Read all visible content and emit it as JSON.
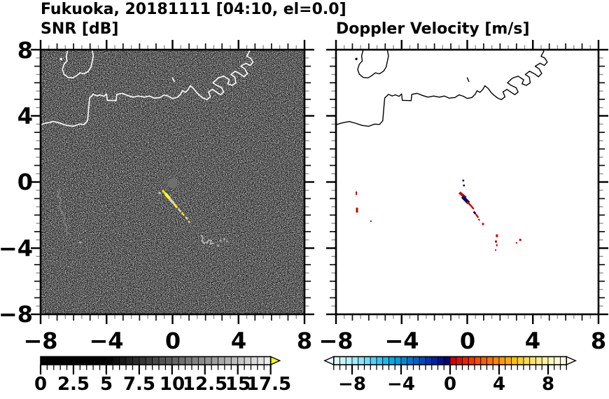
{
  "title": "Fukuoka, 20181111 [04:10, el=0.0]",
  "panels": {
    "snr": {
      "subtitle": "SNR [dB]",
      "ytick_labels": [
        "8",
        "4",
        "0",
        "−4",
        "−8"
      ],
      "xtick_labels": [
        "−8",
        "−4",
        "0",
        "4",
        "8"
      ],
      "colorbar_labels": [
        "0",
        "2.5",
        "5",
        "7.5",
        "10",
        "12.5",
        "15",
        "17.5"
      ]
    },
    "vel": {
      "subtitle": "Doppler Velocity [m/s]",
      "xtick_labels": [
        "−8",
        "−4",
        "0",
        "4",
        "8"
      ],
      "colorbar_labels": [
        "−8",
        "−4",
        "0",
        "4",
        "8"
      ]
    }
  },
  "map": {
    "coastline": [
      [
        [
          -8.05,
          3.45
        ],
        [
          -7.6,
          3.58
        ],
        [
          -7.2,
          3.66
        ],
        [
          -6.8,
          3.55
        ],
        [
          -6.4,
          3.42
        ],
        [
          -6.0,
          3.37
        ],
        [
          -5.65,
          3.5
        ],
        [
          -5.35,
          3.48
        ],
        [
          -5.15,
          3.7
        ],
        [
          -5.1,
          4.3
        ],
        [
          -5.03,
          5.08
        ],
        [
          -4.8,
          5.3
        ],
        [
          -4.58,
          5.2
        ],
        [
          -4.38,
          5.27
        ],
        [
          -4.15,
          5.18
        ],
        [
          -4.0,
          5.33
        ],
        [
          -3.96,
          4.94
        ],
        [
          -3.42,
          4.92
        ],
        [
          -3.38,
          5.3
        ],
        [
          -3.05,
          5.36
        ],
        [
          -2.75,
          5.24
        ],
        [
          -2.4,
          5.13
        ],
        [
          -2.05,
          5.2
        ],
        [
          -1.7,
          5.13
        ],
        [
          -1.4,
          5.2
        ],
        [
          -1.1,
          5.07
        ],
        [
          -0.75,
          5.11
        ],
        [
          -0.5,
          5.27
        ],
        [
          -0.25,
          5.19
        ],
        [
          0.0,
          5.05
        ],
        [
          0.28,
          5.11
        ],
        [
          0.48,
          5.3
        ],
        [
          0.6,
          5.52
        ],
        [
          0.78,
          5.42
        ],
        [
          0.95,
          5.6
        ],
        [
          1.08,
          5.82
        ],
        [
          1.28,
          5.65
        ],
        [
          1.45,
          5.42
        ],
        [
          1.62,
          5.25
        ],
        [
          1.85,
          5.08
        ],
        [
          2.08,
          4.98
        ],
        [
          2.3,
          5.15
        ],
        [
          2.18,
          5.45
        ],
        [
          2.42,
          5.6
        ],
        [
          2.68,
          5.42
        ],
        [
          2.9,
          5.28
        ],
        [
          3.1,
          5.44
        ],
        [
          2.98,
          5.7
        ],
        [
          2.68,
          5.84
        ],
        [
          2.45,
          6.0
        ],
        [
          2.76,
          6.28
        ],
        [
          3.1,
          6.4
        ],
        [
          3.44,
          6.18
        ],
        [
          3.34,
          5.94
        ],
        [
          3.6,
          5.84
        ],
        [
          3.84,
          6.0
        ],
        [
          3.78,
          6.34
        ],
        [
          3.54,
          6.5
        ],
        [
          3.8,
          6.7
        ],
        [
          4.1,
          6.54
        ],
        [
          4.34,
          6.36
        ],
        [
          4.54,
          6.56
        ],
        [
          4.38,
          6.84
        ],
        [
          4.14,
          7.0
        ],
        [
          4.44,
          7.18
        ],
        [
          4.7,
          7.05
        ],
        [
          4.88,
          7.25
        ],
        [
          4.72,
          7.5
        ],
        [
          4.5,
          7.6
        ],
        [
          4.66,
          7.9
        ],
        [
          4.6,
          8.15
        ]
      ],
      [
        [
          -6.3,
          8.15
        ],
        [
          -6.44,
          7.62
        ],
        [
          -6.4,
          7.32
        ],
        [
          -6.58,
          7.12
        ],
        [
          -6.68,
          6.8
        ],
        [
          -6.58,
          6.52
        ],
        [
          -6.34,
          6.32
        ],
        [
          -6.04,
          6.3
        ],
        [
          -5.84,
          6.42
        ],
        [
          -5.6,
          6.6
        ],
        [
          -5.36,
          6.54
        ],
        [
          -5.1,
          6.7
        ],
        [
          -4.94,
          6.96
        ],
        [
          -4.87,
          7.3
        ],
        [
          -4.8,
          7.62
        ],
        [
          -4.9,
          8.15
        ]
      ],
      [
        [
          0.0,
          6.3
        ],
        [
          0.1,
          6.08
        ]
      ]
    ],
    "islet_dot": [
      -6.76,
      7.44
    ]
  },
  "chart_data": [
    {
      "type": "heatmap",
      "title": "SNR [dB]",
      "xlim": [
        -8,
        8
      ],
      "ylim": [
        -8,
        8
      ],
      "xticks": [
        -8,
        -4,
        0,
        4,
        8
      ],
      "yticks": [
        -8,
        -4,
        0,
        4,
        8
      ],
      "minor_tick_step": 0.5,
      "background_color": "#000000",
      "coastline_color": "#ffffff",
      "colorbar": {
        "orientation": "horizontal",
        "min": 0,
        "max": 17.5,
        "segment_step": 0.5,
        "tick_values": [
          0,
          2.5,
          5,
          7.5,
          10,
          12.5,
          15,
          17.5
        ],
        "palette": "black-to-white",
        "over_arrow_color": "#ffff00"
      },
      "features": {
        "radar_site": {
          "x": 0.0,
          "y": -0.08,
          "radius": 0.31,
          "color": "#6f6f6f"
        },
        "plume_segments": [
          {
            "c": [
              -0.78,
              -0.66
            ],
            "l": 0.18,
            "w": 0.09,
            "a": 52,
            "col": "#c8c8c8"
          },
          {
            "c": [
              -0.52,
              -0.6
            ],
            "l": 0.3,
            "w": 0.13,
            "a": 50,
            "col": "#eaea00"
          },
          {
            "c": [
              -0.3,
              -0.86
            ],
            "l": 0.44,
            "w": 0.18,
            "a": 48,
            "col": "#ffff22"
          },
          {
            "c": [
              -0.05,
              -1.16
            ],
            "l": 0.4,
            "w": 0.15,
            "a": 48,
            "col": "#d8d8cc"
          },
          {
            "c": [
              0.18,
              -1.43
            ],
            "l": 0.34,
            "w": 0.13,
            "a": 50,
            "col": "#ffff00"
          },
          {
            "c": [
              0.42,
              -1.7
            ],
            "l": 0.26,
            "w": 0.11,
            "a": 50,
            "col": "#cfcfc6"
          },
          {
            "c": [
              0.63,
              -1.94
            ],
            "l": 0.26,
            "w": 0.1,
            "a": 52,
            "col": "#f0f000"
          },
          {
            "c": [
              0.85,
              -2.18
            ],
            "l": 0.22,
            "w": 0.09,
            "a": 52,
            "col": "#e0e0d4"
          },
          {
            "c": [
              1.0,
              -2.4
            ],
            "l": 0.16,
            "w": 0.08,
            "a": 52,
            "col": "#ffff44"
          }
        ],
        "ground_clutter_curl": [
          [
            1.7,
            -3.2
          ],
          [
            1.85,
            -3.35
          ],
          [
            1.78,
            -3.55
          ],
          [
            1.9,
            -3.7
          ],
          [
            2.1,
            -3.65
          ],
          [
            2.2,
            -3.5
          ],
          [
            2.35,
            -3.55
          ],
          [
            2.3,
            -3.75
          ],
          [
            2.5,
            -3.7
          ]
        ],
        "clutter_dots": [
          [
            2.9,
            -3.55
          ],
          [
            3.15,
            -3.45
          ],
          [
            2.75,
            -3.85
          ],
          [
            3.3,
            -3.6
          ],
          [
            -5.6,
            -3.65
          ]
        ],
        "weak_echo_chain_west": [
          [
            -6.85,
            -0.5
          ],
          [
            -6.95,
            -0.85
          ],
          [
            -6.75,
            -1.1
          ],
          [
            -6.88,
            -1.5
          ],
          [
            -6.7,
            -1.85
          ],
          [
            -6.55,
            -2.1
          ],
          [
            -6.6,
            -2.45
          ],
          [
            -6.4,
            -2.7
          ],
          [
            -6.45,
            -3.0
          ],
          [
            -6.25,
            -3.15
          ]
        ],
        "weak_echo_chain_mid": [
          [
            -4.5,
            -0.55
          ],
          [
            -4.3,
            -0.9
          ],
          [
            -4.05,
            -1.2
          ],
          [
            -3.6,
            -1.75
          ],
          [
            -3.4,
            -2.05
          ],
          [
            -3.75,
            -2.7
          ],
          [
            -3.82,
            -3.3
          ],
          [
            -3.3,
            -3.5
          ],
          [
            -2.85,
            -3.72
          ],
          [
            -2.4,
            -3.9
          ],
          [
            -2.0,
            -4.0
          ]
        ]
      }
    },
    {
      "type": "heatmap",
      "title": "Doppler Velocity [m/s]",
      "xlim": [
        -8,
        8
      ],
      "ylim": [
        -8,
        8
      ],
      "xticks": [
        -8,
        -4,
        0,
        4,
        8
      ],
      "yticks": [
        -8,
        -4,
        0,
        4,
        8
      ],
      "minor_tick_step": 0.5,
      "background_color": "#ffffff",
      "coastline_color": "#000000",
      "colorbar": {
        "orientation": "horizontal",
        "min": -9.5,
        "max": 9.5,
        "segment_step": 0.5,
        "tick_values": [
          -8,
          -4,
          0,
          4,
          8
        ],
        "under_arrow_color": "#eafcff",
        "over_arrow_color": "#ffffea",
        "colors": [
          "#dcfaff",
          "#c8f5ff",
          "#b4f0ff",
          "#a0ebff",
          "#8ce5ff",
          "#6edcff",
          "#50d2fe",
          "#32c8f8",
          "#14bcf0",
          "#00ace8",
          "#009ce0",
          "#008ad8",
          "#0076d0",
          "#0060c8",
          "#004ac0",
          "#0034b6",
          "#0020a6",
          "#001090",
          "#000478",
          "#d40000",
          "#e20e00",
          "#ee2000",
          "#f83400",
          "#ff4a00",
          "#ff5e00",
          "#ff7200",
          "#ff8600",
          "#ff9a00",
          "#ffae00",
          "#ffc200",
          "#ffd02c",
          "#ffda48",
          "#ffe364",
          "#ffeb80",
          "#fff29c",
          "#fff7b6",
          "#fffbcc",
          "#ffffe0"
        ]
      },
      "features": {
        "streak_rects": [
          {
            "c": [
              -0.28,
              -0.8
            ],
            "l": 0.5,
            "w": 0.17,
            "a": 40,
            "col": "#cc0000"
          },
          {
            "c": [
              -0.1,
              -1.08
            ],
            "l": 0.55,
            "w": 0.21,
            "a": 45,
            "col": "#000070"
          },
          {
            "c": [
              0.1,
              -1.3
            ],
            "l": 0.3,
            "w": 0.11,
            "a": 48,
            "col": "#cc0000"
          },
          {
            "c": [
              0.3,
              -1.52
            ],
            "l": 0.3,
            "w": 0.1,
            "a": 50,
            "col": "#cc0000"
          },
          {
            "c": [
              0.45,
              -1.86
            ],
            "l": 0.18,
            "w": 0.12,
            "a": 50,
            "col": "#000070"
          },
          {
            "c": [
              0.6,
              -2.05
            ],
            "l": 0.26,
            "w": 0.1,
            "a": 55,
            "col": "#cc0000"
          },
          {
            "c": [
              0.72,
              -2.28
            ],
            "l": 0.12,
            "w": 0.08,
            "a": 55,
            "col": "#cc0000"
          }
        ],
        "red_specks": [
          [
            -6.76,
            -0.68,
            2,
            5
          ],
          [
            -6.72,
            -1.7,
            3,
            7
          ],
          [
            -5.87,
            -2.37,
            2,
            2
          ],
          [
            0.96,
            -2.54,
            3,
            3
          ],
          [
            1.81,
            -3.25,
            3,
            4
          ],
          [
            1.75,
            -3.6,
            3,
            3
          ],
          [
            1.8,
            -3.82,
            2,
            3
          ],
          [
            1.73,
            -4.12,
            2,
            2
          ],
          [
            3.23,
            -3.5,
            3,
            3
          ],
          [
            3.0,
            -3.68,
            2,
            2
          ]
        ],
        "navy_dots": [
          [
            -0.24,
            0.09
          ],
          [
            -0.2,
            -0.21
          ]
        ],
        "speck_color": "#cc0000",
        "navy_color": "#000070"
      }
    }
  ]
}
